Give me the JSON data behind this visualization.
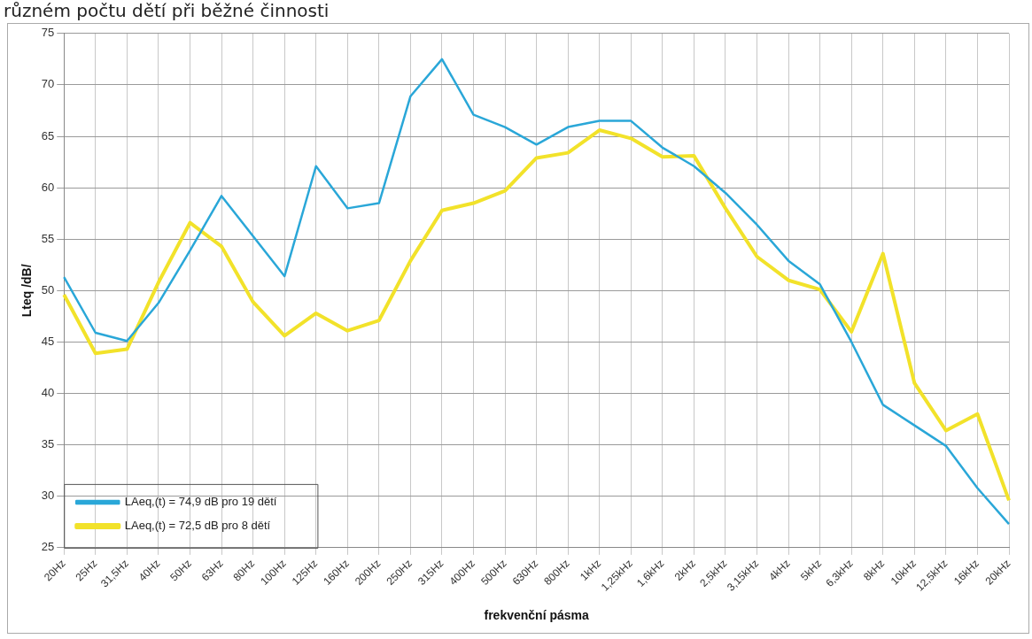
{
  "chart_data": {
    "type": "line",
    "title": "různém počtu dětí při běžné činnosti",
    "xlabel": "frekvenční pásma",
    "ylabel": "Lteq /dB/",
    "categories": [
      "20Hz",
      "25Hz",
      "31,5Hz",
      "40Hz",
      "50Hz",
      "63Hz",
      "80Hz",
      "100Hz",
      "125Hz",
      "160Hz",
      "200Hz",
      "250Hz",
      "315Hz",
      "400Hz",
      "500Hz",
      "630Hz",
      "800Hz",
      "1kHz",
      "1,25kHz",
      "1,6kHz",
      "2kHz",
      "2,5kHz",
      "3,15kHz",
      "4kHz",
      "5kHz",
      "6,3kHz",
      "8kHz",
      "10kHz",
      "12,5kHz",
      "16kHz",
      "20kHz"
    ],
    "series": [
      {
        "name": "LAeq,(t) = 74,9 dB pro 19 dětí",
        "color": "#2aa7d8",
        "values": [
          51.3,
          45.9,
          45.1,
          48.8,
          53.9,
          59.2,
          55.3,
          51.4,
          62.1,
          58.0,
          58.5,
          68.9,
          72.5,
          67.1,
          65.9,
          64.2,
          65.9,
          66.5,
          66.5,
          63.9,
          62.1,
          59.5,
          56.4,
          52.9,
          50.6,
          45.0,
          38.9,
          36.9,
          34.9,
          30.8,
          27.3
        ]
      },
      {
        "name": "LAeq,(t) = 72,5 dB pro 8 dětí",
        "color": "#f2e22a",
        "values": [
          49.6,
          43.9,
          44.3,
          50.8,
          56.6,
          54.3,
          48.9,
          45.6,
          47.8,
          46.1,
          47.1,
          52.9,
          57.8,
          58.5,
          59.7,
          62.9,
          63.4,
          65.6,
          64.8,
          63.0,
          63.1,
          58.0,
          53.3,
          51.0,
          50.1,
          46.0,
          53.6,
          41.0,
          36.4,
          38.0,
          29.6
        ]
      }
    ],
    "ylim": [
      25,
      75
    ],
    "yticks": [
      25,
      30,
      35,
      40,
      45,
      50,
      55,
      60,
      65,
      70,
      75
    ],
    "grid": true,
    "legend": "bottom left",
    "marker": "none",
    "line_style": "solid"
  }
}
